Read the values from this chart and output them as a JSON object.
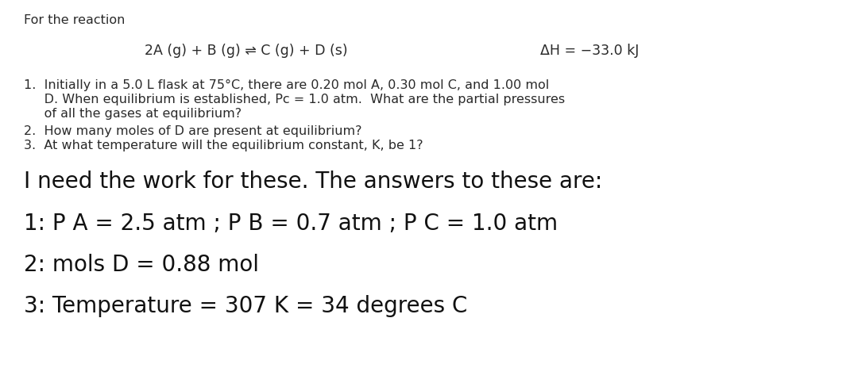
{
  "bg_color": "#ffffff",
  "text_color_dark": "#2a2a2a",
  "header": "For the reaction",
  "reaction": "2A (g) + B (g) ⇌ C (g) + D (s)",
  "delta_h": "ΔH = −33.0 kJ",
  "q1a": "1.  Initially in a 5.0 L flask at 75°C, there are 0.20 mol A, 0.30 mol C, and 1.00 mol",
  "q1b": "     D. When equilibrium is established, Pᴄ = 1.0 atm.  What are the partial pressures",
  "q1c": "     of all the gases at equilibrium?",
  "q2": "2.  How many moles of D are present at equilibrium?",
  "q3": "3.  At what temperature will the equilibrium constant, K, be 1?",
  "ans0": "I need the work for these. The answers to these are:",
  "ans1": "1: P A = 2.5 atm ; P B = 0.7 atm ; P C = 1.0 atm",
  "ans2": "2: mols D = 0.88 mol",
  "ans3": "3: Temperature = 307 K = 34 degrees C",
  "small_fs": 11.5,
  "reaction_fs": 12.5,
  "answer_fs": 20.0
}
